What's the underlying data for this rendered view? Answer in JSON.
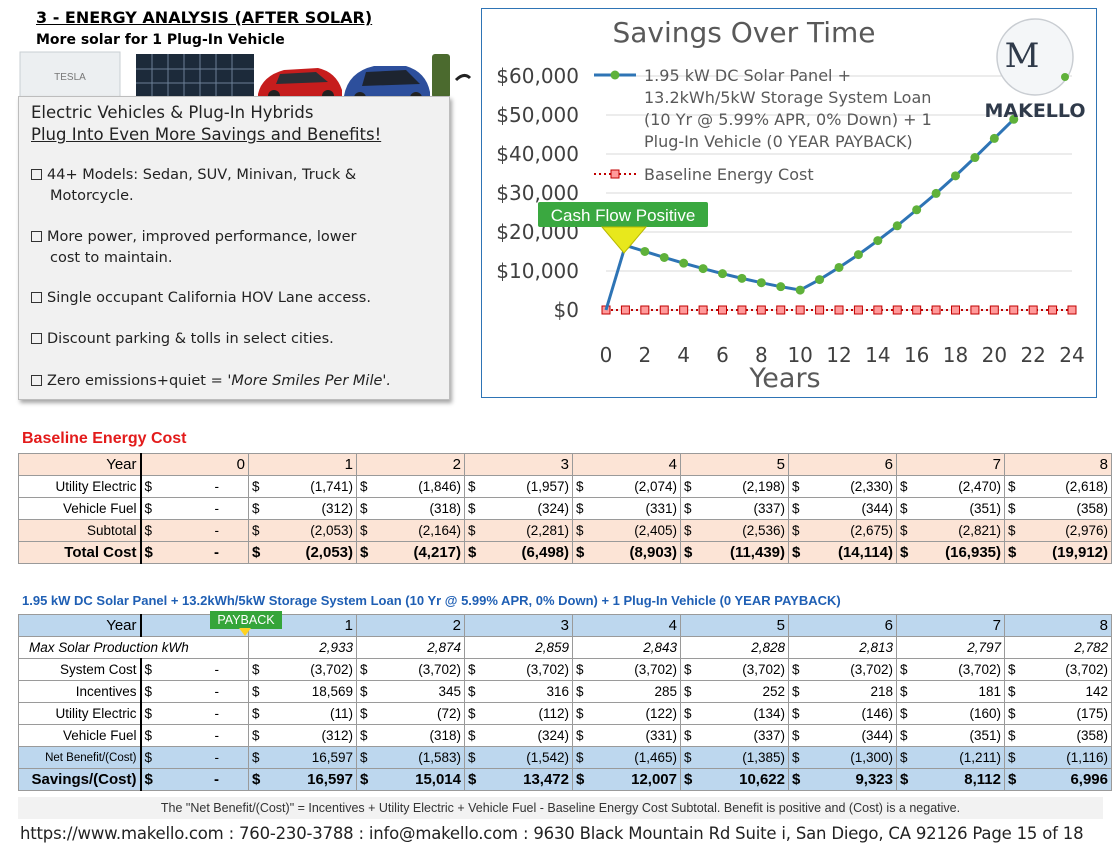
{
  "header": {
    "title": "3 - ENERGY ANALYSIS (AFTER SOLAR)",
    "subtitle": "More solar for 1 Plug-In Vehicle",
    "battery_brand": "TESLA"
  },
  "infobox": {
    "line1": "Electric Vehicles & Plug-In Hybrids",
    "line2": "Plug Into Even More Savings and Benefits!",
    "items": [
      {
        "a": "44+ Models: Sedan, SUV, Minivan, Truck &",
        "b": "Motorcycle."
      },
      {
        "a": "More power, improved performance, lower",
        "b": "cost to maintain."
      },
      {
        "a": "Single occupant California HOV Lane access.",
        "b": ""
      },
      {
        "a": "Discount parking & tolls in select cities.",
        "b": ""
      },
      {
        "a": "Zero emissions+quiet = ",
        "b": "'More Smiles Per Mile'."
      }
    ]
  },
  "chart_data": {
    "type": "line",
    "title": "Savings Over Time",
    "xlabel": "Years",
    "ylabel": "",
    "xlim": [
      0,
      24
    ],
    "ylim": [
      0,
      60000
    ],
    "xticks": [
      "0",
      "2",
      "4",
      "6",
      "8",
      "10",
      "12",
      "14",
      "16",
      "18",
      "20",
      "22",
      "24"
    ],
    "yticks": [
      "$0",
      "$10,000",
      "$20,000",
      "$30,000",
      "$40,000",
      "$50,000",
      "$60,000"
    ],
    "legend_placement": "top-right",
    "series": [
      {
        "name": "1.95 kW DC Solar Panel + 13.2kWh/5kW Storage System Loan (10 Yr @ 5.99% APR, 0% Down) + 1 Plug-In Vehicle (0 YEAR PAYBACK)",
        "legend_lines": [
          "1.95 kW DC Solar Panel +",
          "13.2kWh/5kW Storage System Loan",
          "(10 Yr @ 5.99% APR, 0% Down) + 1",
          "Plug-In Vehicle  (0 YEAR PAYBACK)"
        ],
        "color": "#2e74b5",
        "marker_color": "#5fb13a",
        "x": [
          0,
          1,
          2,
          3,
          4,
          5,
          6,
          7,
          8,
          9,
          10,
          11,
          12,
          13,
          14,
          15,
          16,
          17,
          18,
          19,
          20,
          21
        ],
        "y": [
          0,
          16597,
          15014,
          13472,
          12007,
          10622,
          9323,
          8112,
          6996,
          5985,
          5100,
          7800,
          10900,
          14200,
          17800,
          21600,
          25700,
          29900,
          34400,
          39100,
          44000,
          48900
        ]
      },
      {
        "name": "Baseline Energy Cost",
        "color": "#c00000",
        "marker_color": "#ff9a9a",
        "x": [
          0,
          1,
          2,
          3,
          4,
          5,
          6,
          7,
          8,
          9,
          10,
          11,
          12,
          13,
          14,
          15,
          16,
          17,
          18,
          19,
          20,
          21,
          22,
          23,
          24,
          25
        ],
        "y": [
          0,
          0,
          0,
          0,
          0,
          0,
          0,
          0,
          0,
          0,
          0,
          0,
          0,
          0,
          0,
          0,
          0,
          0,
          0,
          0,
          0,
          0,
          0,
          0,
          0,
          0
        ]
      }
    ],
    "annotation": "Cash Flow Positive"
  },
  "logo": {
    "name": "MAKELLO",
    "letter": "M"
  },
  "baseline": {
    "title": "Baseline Energy Cost",
    "years": [
      "Year",
      "0",
      "1",
      "2",
      "3",
      "4",
      "5",
      "6",
      "7",
      "8"
    ],
    "rows": [
      {
        "label": "Utility Electric",
        "vals": [
          "-",
          "(1,741)",
          "(1,846)",
          "(1,957)",
          "(2,074)",
          "(2,198)",
          "(2,330)",
          "(2,470)",
          "(2,618)"
        ]
      },
      {
        "label": "Vehicle Fuel",
        "vals": [
          "-",
          "(312)",
          "(318)",
          "(324)",
          "(331)",
          "(337)",
          "(344)",
          "(351)",
          "(358)"
        ]
      },
      {
        "label": "Subtotal",
        "vals": [
          "-",
          "(2,053)",
          "(2,164)",
          "(2,281)",
          "(2,405)",
          "(2,536)",
          "(2,675)",
          "(2,821)",
          "(2,976)"
        ]
      }
    ],
    "total": {
      "label": "Total Cost",
      "vals": [
        "-",
        "(2,053)",
        "(4,217)",
        "(6,498)",
        "(8,903)",
        "(11,439)",
        "(14,114)",
        "(16,935)",
        "(19,912)"
      ]
    }
  },
  "solar": {
    "title": "1.95 kW DC Solar Panel + 13.2kWh/5kW Storage System Loan (10 Yr @ 5.99% APR, 0% Down) + 1 Plug-In Vehicle  (0 YEAR PAYBACK)",
    "payback_label": "PAYBACK",
    "years": [
      "Year",
      "",
      "1",
      "2",
      "3",
      "4",
      "5",
      "6",
      "7",
      "8"
    ],
    "production": {
      "label": "Max Solar Production kWh",
      "vals": [
        "2,933",
        "2,874",
        "2,859",
        "2,843",
        "2,828",
        "2,813",
        "2,797",
        "2,782"
      ]
    },
    "rows": [
      {
        "label": "System Cost",
        "vals": [
          "-",
          "(3,702)",
          "(3,702)",
          "(3,702)",
          "(3,702)",
          "(3,702)",
          "(3,702)",
          "(3,702)",
          "(3,702)"
        ]
      },
      {
        "label": "Incentives",
        "vals": [
          "-",
          "18,569",
          "345",
          "316",
          "285",
          "252",
          "218",
          "181",
          "142"
        ]
      },
      {
        "label": "Utility Electric",
        "vals": [
          "-",
          "(11)",
          "(72)",
          "(112)",
          "(122)",
          "(134)",
          "(146)",
          "(160)",
          "(175)"
        ]
      },
      {
        "label": "Vehicle Fuel",
        "vals": [
          "-",
          "(312)",
          "(318)",
          "(324)",
          "(331)",
          "(337)",
          "(344)",
          "(351)",
          "(358)"
        ]
      }
    ],
    "net": {
      "label": "Net Benefit/(Cost)",
      "vals": [
        "-",
        "16,597",
        "(1,583)",
        "(1,542)",
        "(1,465)",
        "(1,385)",
        "(1,300)",
        "(1,211)",
        "(1,116)"
      ]
    },
    "savings": {
      "label": "Savings/(Cost)",
      "vals": [
        "-",
        "16,597",
        "15,014",
        "13,472",
        "12,007",
        "10,622",
        "9,323",
        "8,112",
        "6,996"
      ]
    }
  },
  "currency": "$",
  "footnote": "The \"Net Benefit/(Cost)\" = Incentives + Utility Electric + Vehicle Fuel - Baseline Energy Cost Subtotal.  Benefit is positive and (Cost) is a negative.",
  "footer": "https://www.makello.com : 760-230-3788 : info@makello.com : 9630 Black Mountain Rd Suite i, San Diego, CA 92126  Page 15 of 18"
}
